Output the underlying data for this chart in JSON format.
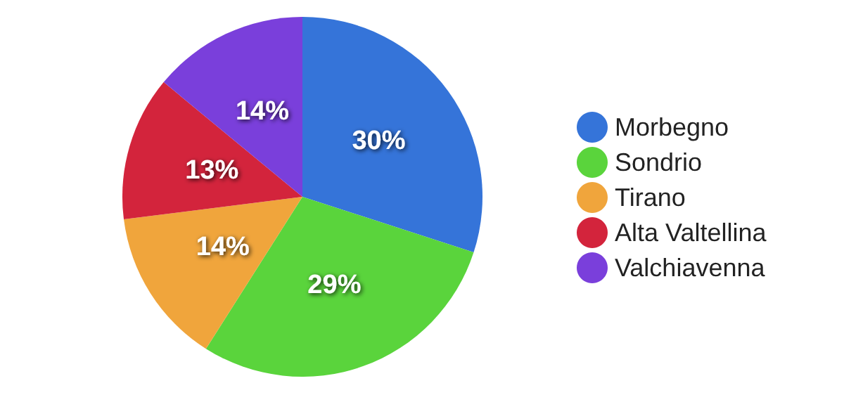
{
  "chart_data": {
    "type": "pie",
    "categories": [
      "Morbegno",
      "Sondrio",
      "Tirano",
      "Alta Valtellina",
      "Valchiavenna"
    ],
    "values": [
      30,
      29,
      14,
      13,
      14
    ],
    "colors": [
      "#3574d9",
      "#5ad43c",
      "#f0a53c",
      "#d3243c",
      "#7a3fdb"
    ],
    "value_labels": [
      "30%",
      "29%",
      "14%",
      "13%",
      "14%"
    ],
    "legend": "right"
  }
}
